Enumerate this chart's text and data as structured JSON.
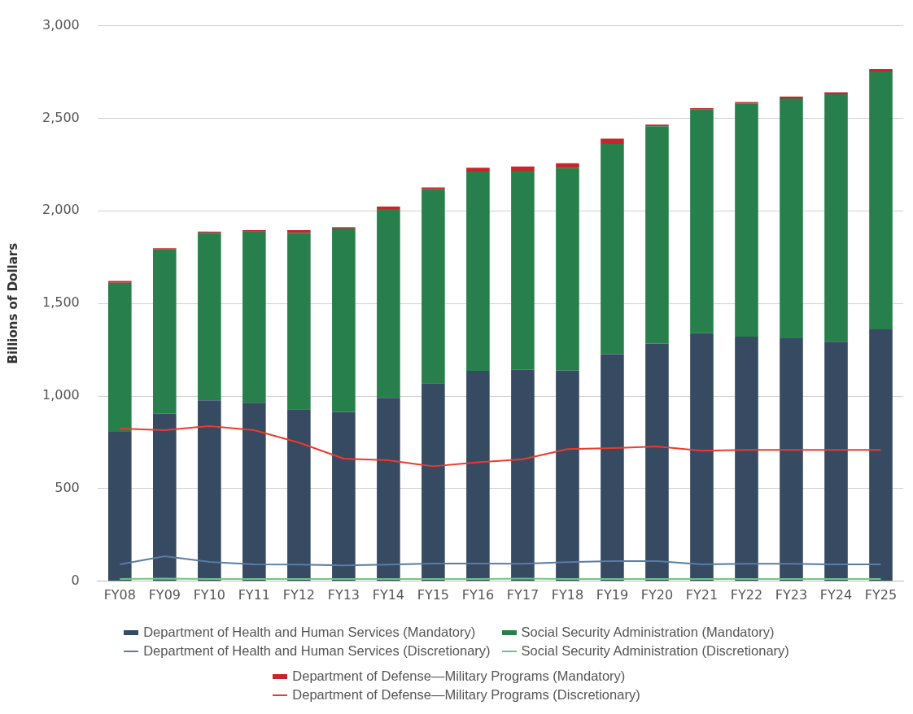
{
  "chart_data": {
    "type": "bar",
    "ylabel": "Billions of Dollars",
    "categories": [
      "FY08",
      "FY09",
      "FY10",
      "FY11",
      "FY12",
      "FY13",
      "FY14",
      "FY15",
      "FY16",
      "FY17",
      "FY18",
      "FY19",
      "FY20",
      "FY21",
      "FY22",
      "FY23",
      "FY24",
      "FY25"
    ],
    "stacked": true,
    "ylim": [
      0,
      3000
    ],
    "yticks": [
      {
        "value": 0,
        "label": "0"
      },
      {
        "value": 500,
        "label": "500"
      },
      {
        "value": 1000,
        "label": "1,000"
      },
      {
        "value": 1500,
        "label": "1,500"
      },
      {
        "value": 2000,
        "label": "2,000"
      },
      {
        "value": 2500,
        "label": "2,500"
      },
      {
        "value": 3000,
        "label": "3,000"
      }
    ],
    "grid": "y",
    "legend": "bottom",
    "series": [
      {
        "name": "Department of Health and Human Services (Mandatory)",
        "color": "#364a61",
        "values": [
          807,
          905,
          977,
          964,
          929,
          915,
          990,
          1069,
          1136,
          1143,
          1138,
          1226,
          1284,
          1340,
          1321,
          1312,
          1293,
          1360
        ]
      },
      {
        "name": "Social Security Administration (Mandatory)",
        "color": "#27804b",
        "values": [
          805,
          887,
          905,
          924,
          953,
          990,
          1020,
          1048,
          1076,
          1074,
          1093,
          1136,
          1173,
          1207,
          1258,
          1295,
          1336,
          1392
        ]
      },
      {
        "name": "Department of Health and Human Services (Discretionary)",
        "type": "line",
        "color": "#5a7ca6",
        "values": [
          91,
          135,
          105,
          91,
          90,
          86,
          90,
          96,
          96,
          95,
          103,
          109,
          109,
          91,
          95,
          95,
          91,
          91
        ]
      },
      {
        "name": "Social Security Administration (Discretionary)",
        "type": "line",
        "color": "#6cc884",
        "values": [
          12,
          15,
          12,
          12,
          12,
          12,
          12,
          12,
          12,
          14,
          12,
          12,
          12,
          12,
          12,
          12,
          12,
          12
        ]
      },
      {
        "name": "Department of Defense—Military Programs (Mandatory)",
        "color": "#c4262b",
        "values": [
          10,
          6,
          6,
          8,
          14,
          7,
          13,
          10,
          21,
          23,
          26,
          28,
          9,
          8,
          9,
          10,
          11,
          13
        ]
      },
      {
        "name": "Department of Defense—Military Programs (Discretionary)",
        "type": "line",
        "color": "#ee3a2c",
        "values": [
          825,
          816,
          838,
          816,
          749,
          662,
          653,
          621,
          642,
          659,
          714,
          719,
          728,
          705,
          709,
          709,
          709,
          709
        ]
      }
    ],
    "marker": "none"
  }
}
